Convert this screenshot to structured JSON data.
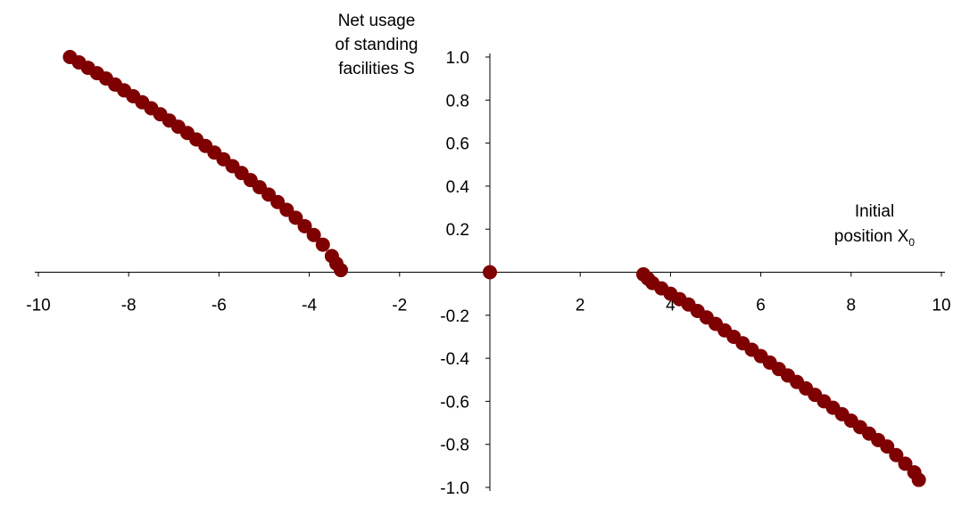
{
  "chart_data": {
    "type": "scatter",
    "ylabel_lines": [
      "Net usage",
      "of standing",
      "facilities S"
    ],
    "xlabel": {
      "line1": "Initial",
      "line2_text": "position X",
      "line2_subscript": "0"
    },
    "xlim": [
      -10,
      10
    ],
    "ylim": [
      -1.0,
      1.0
    ],
    "x_ticks": [
      -10,
      -8,
      -6,
      -4,
      -2,
      2,
      4,
      6,
      8,
      10
    ],
    "y_tick_labels": [
      {
        "value": 1.0,
        "label": "1.0"
      },
      {
        "value": 0.8,
        "label": "0.8"
      },
      {
        "value": 0.6,
        "label": "0.6"
      },
      {
        "value": 0.4,
        "label": "0.4"
      },
      {
        "value": 0.2,
        "label": "0.2"
      },
      {
        "value": -0.2,
        "label": "-0.2"
      },
      {
        "value": -0.4,
        "label": "-0.4"
      },
      {
        "value": -0.6,
        "label": "-0.6"
      },
      {
        "value": -0.8,
        "label": "-0.8"
      },
      {
        "value": -1.0,
        "label": "-1.0"
      }
    ],
    "grid": false,
    "legend": "none",
    "marker_color": "#7f0000",
    "series": [
      {
        "points": [
          [
            -9.3,
            1.0
          ],
          [
            -9.1,
            0.975
          ],
          [
            -8.9,
            0.95
          ],
          [
            -8.7,
            0.925
          ],
          [
            -8.5,
            0.9
          ],
          [
            -8.3,
            0.872
          ],
          [
            -8.1,
            0.845
          ],
          [
            -7.9,
            0.818
          ],
          [
            -7.7,
            0.79
          ],
          [
            -7.5,
            0.762
          ],
          [
            -7.3,
            0.734
          ],
          [
            -7.1,
            0.705
          ],
          [
            -6.9,
            0.676
          ],
          [
            -6.7,
            0.647
          ],
          [
            -6.5,
            0.617
          ],
          [
            -6.3,
            0.587
          ],
          [
            -6.1,
            0.556
          ],
          [
            -5.9,
            0.525
          ],
          [
            -5.7,
            0.493
          ],
          [
            -5.5,
            0.461
          ],
          [
            -5.3,
            0.428
          ],
          [
            -5.1,
            0.395
          ],
          [
            -4.9,
            0.361
          ],
          [
            -4.7,
            0.326
          ],
          [
            -4.5,
            0.29
          ],
          [
            -4.3,
            0.253
          ],
          [
            -4.1,
            0.214
          ],
          [
            -3.9,
            0.173
          ],
          [
            -3.7,
            0.128
          ],
          [
            -3.5,
            0.075
          ],
          [
            -3.4,
            0.04
          ],
          [
            -3.3,
            0.01
          ]
        ]
      },
      {
        "points": [
          [
            0,
            0
          ]
        ]
      },
      {
        "points": [
          [
            3.4,
            -0.01
          ],
          [
            3.5,
            -0.03
          ],
          [
            3.6,
            -0.05
          ],
          [
            3.8,
            -0.075
          ],
          [
            4.0,
            -0.1
          ],
          [
            4.2,
            -0.125
          ],
          [
            4.4,
            -0.15
          ],
          [
            4.6,
            -0.18
          ],
          [
            4.8,
            -0.21
          ],
          [
            5.0,
            -0.24
          ],
          [
            5.2,
            -0.27
          ],
          [
            5.4,
            -0.3
          ],
          [
            5.6,
            -0.33
          ],
          [
            5.8,
            -0.36
          ],
          [
            6.0,
            -0.39
          ],
          [
            6.2,
            -0.42
          ],
          [
            6.4,
            -0.45
          ],
          [
            6.6,
            -0.48
          ],
          [
            6.8,
            -0.51
          ],
          [
            7.0,
            -0.54
          ],
          [
            7.2,
            -0.57
          ],
          [
            7.4,
            -0.6
          ],
          [
            7.6,
            -0.63
          ],
          [
            7.8,
            -0.66
          ],
          [
            8.0,
            -0.69
          ],
          [
            8.2,
            -0.72
          ],
          [
            8.4,
            -0.75
          ],
          [
            8.6,
            -0.78
          ],
          [
            8.8,
            -0.81
          ],
          [
            9.0,
            -0.85
          ],
          [
            9.2,
            -0.89
          ],
          [
            9.4,
            -0.93
          ],
          [
            9.5,
            -0.965
          ]
        ]
      }
    ]
  }
}
